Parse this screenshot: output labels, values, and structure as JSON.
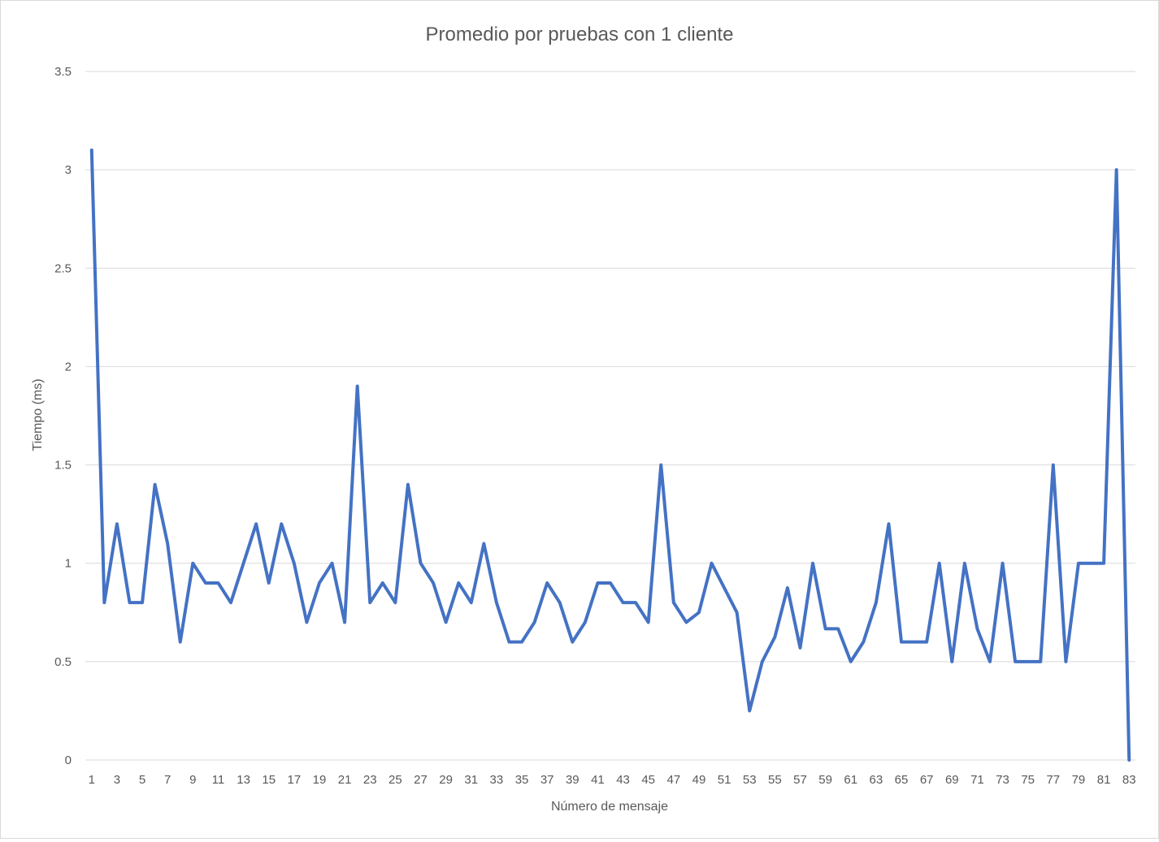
{
  "chart_data": {
    "type": "line",
    "title": "Promedio por pruebas con 1 cliente",
    "xlabel": "Número de mensaje",
    "ylabel": "Tiempo (ms)",
    "ylim": [
      0,
      3.5
    ],
    "yticks": [
      "0",
      "0.5",
      "1",
      "1.5",
      "2",
      "2.5",
      "3",
      "3.5"
    ],
    "x": [
      1,
      2,
      3,
      4,
      5,
      6,
      7,
      8,
      9,
      10,
      11,
      12,
      13,
      14,
      15,
      16,
      17,
      18,
      19,
      20,
      21,
      22,
      23,
      24,
      25,
      26,
      27,
      28,
      29,
      30,
      31,
      32,
      33,
      34,
      35,
      36,
      37,
      38,
      39,
      40,
      41,
      42,
      43,
      44,
      45,
      46,
      47,
      48,
      49,
      50,
      51,
      52,
      53,
      54,
      55,
      56,
      57,
      58,
      59,
      60,
      61,
      62,
      63,
      64,
      65,
      66,
      67,
      68,
      69,
      70,
      71,
      72,
      73,
      74,
      75,
      76,
      77,
      78,
      79,
      80,
      81,
      82,
      83
    ],
    "xtick_labels": [
      "1",
      "3",
      "5",
      "7",
      "9",
      "11",
      "13",
      "15",
      "17",
      "19",
      "21",
      "23",
      "25",
      "27",
      "29",
      "31",
      "33",
      "35",
      "37",
      "39",
      "41",
      "43",
      "45",
      "47",
      "49",
      "51",
      "53",
      "55",
      "57",
      "59",
      "61",
      "63",
      "65",
      "67",
      "69",
      "71",
      "73",
      "75",
      "77",
      "79",
      "81",
      "83"
    ],
    "grid": true,
    "series": [
      {
        "color": "#4472c4",
        "values": [
          3.1,
          0.8,
          1.2,
          0.8,
          0.8,
          1.4,
          1.1,
          0.6,
          1.0,
          0.9,
          0.9,
          0.8,
          1.0,
          1.2,
          0.9,
          1.2,
          1.0,
          0.7,
          0.9,
          1.0,
          0.7,
          1.9,
          0.8,
          0.9,
          0.8,
          1.4,
          1.0,
          0.9,
          0.7,
          0.9,
          0.8,
          1.1,
          0.8,
          0.6,
          0.6,
          0.7,
          0.9,
          0.8,
          0.6,
          0.7,
          0.9,
          0.9,
          0.8,
          0.8,
          0.7,
          1.5,
          0.8,
          0.7,
          0.75,
          1.0,
          0.875,
          0.75,
          0.25,
          0.5,
          0.625,
          0.875,
          0.57,
          1.0,
          0.667,
          0.667,
          0.5,
          0.6,
          0.8,
          1.2,
          0.6,
          0.6,
          0.6,
          1.0,
          0.5,
          1.0,
          0.667,
          0.5,
          1.0,
          0.5,
          0.5,
          0.5,
          1.5,
          0.5,
          1.0,
          1.0,
          1.0,
          3.0,
          0.0
        ]
      }
    ]
  }
}
